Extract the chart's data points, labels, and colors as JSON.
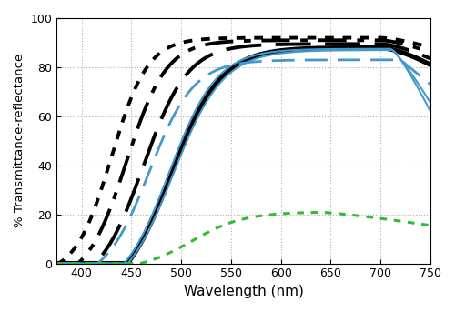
{
  "xlabel": "Wavelength (nm)",
  "ylabel": "% Transmittance-reflectance",
  "xlim": [
    375,
    750
  ],
  "ylim": [
    0,
    100
  ],
  "xticks": [
    400,
    450,
    500,
    550,
    600,
    650,
    700,
    750
  ],
  "yticks": [
    0,
    20,
    40,
    60,
    80,
    100
  ],
  "grid_color": "#aaaaaa",
  "wl_start": 375,
  "wl_end": 750,
  "wl_n": 500,
  "black_color": "#000000",
  "blue_color": "#4499cc",
  "green_color": "#33bb33",
  "xlabel_fontsize": 11,
  "ylabel_fontsize": 9.5,
  "tick_labelsize": 9,
  "figwidth": 5.0,
  "figheight": 3.43,
  "dpi": 100
}
